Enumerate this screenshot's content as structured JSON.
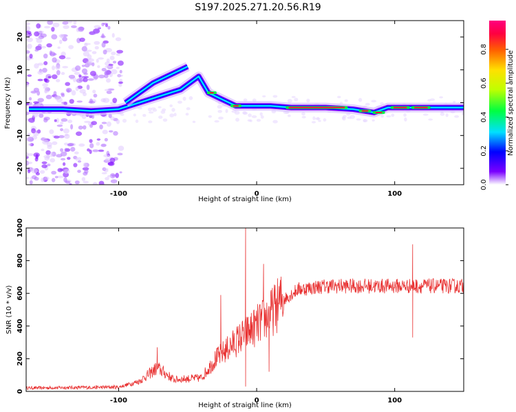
{
  "page_title": "S197.2025.271.20.56.R19",
  "colors": {
    "snr_line": "#e83030",
    "colorbar": [
      "#ffffff",
      "#7a00ff",
      "#0000ff",
      "#00e0ff",
      "#00ff40",
      "#c0ff00",
      "#ffe000",
      "#ff6000",
      "#ff0040",
      "#ff007f"
    ]
  },
  "chart_data": [
    {
      "id": "spectrogram",
      "type": "heatmap",
      "title": "S197.2025.271.20.56.R19",
      "xlabel": "Height of straight line (km)",
      "ylabel": "Frequency (Hz)",
      "xlim": [
        -167,
        150
      ],
      "ylim": [
        -25,
        25
      ],
      "xticks": [
        -100,
        0,
        100
      ],
      "xtick_labels": [
        "-100",
        "0",
        "100"
      ],
      "yticks": [
        -20,
        -10,
        0,
        10,
        20
      ],
      "ytick_labels": [
        "-20",
        "-10",
        "0",
        "10",
        "20"
      ],
      "colorbar": {
        "label": "Normalized spectral amplitude",
        "range": [
          0,
          0.97
        ],
        "ticks": [
          0,
          0.2,
          0.4,
          0.6,
          0.8
        ],
        "tick_labels": [
          "0.0",
          "0.2",
          "0.4",
          "0.6",
          "0.8"
        ]
      },
      "ridges": [
        {
          "name": "lower-ridge",
          "x": [
            -165,
            -140,
            -120,
            -100,
            -85,
            -70,
            -55,
            -42,
            -35,
            -25,
            -15,
            -5,
            10,
            25,
            50,
            70,
            85,
            95,
            110,
            125,
            150
          ],
          "y": [
            -2,
            -2,
            -2.5,
            -2,
            0,
            2,
            4,
            8,
            3,
            1,
            -1,
            -1,
            -1,
            -1.5,
            -1.5,
            -2,
            -3,
            -1.5,
            -1.5,
            -1.5,
            -1.5
          ]
        },
        {
          "name": "upper-ridge",
          "x": [
            -95,
            -85,
            -75,
            -65,
            -55,
            -50
          ],
          "y": [
            0,
            3,
            6,
            8,
            10,
            11
          ]
        }
      ]
    },
    {
      "id": "snr",
      "type": "line",
      "xlabel": "Height of straight line (km)",
      "ylabel": "SNR (10 * v/v)",
      "xlim": [
        -167,
        150
      ],
      "ylim": [
        0,
        1000
      ],
      "xticks": [
        -100,
        0,
        100
      ],
      "xtick_labels": [
        "-100",
        "0",
        "100"
      ],
      "yticks": [
        0,
        200,
        400,
        600,
        800,
        1000
      ],
      "ytick_labels": [
        "0",
        "200",
        "400",
        "600",
        "800",
        "1000"
      ],
      "series": [
        {
          "name": "SNR",
          "envelope_x": [
            -167,
            -100,
            -85,
            -72,
            -60,
            -40,
            -30,
            -20,
            -10,
            0,
            10,
            20,
            30,
            50,
            100,
            150
          ],
          "envelope_y": [
            20,
            25,
            60,
            140,
            70,
            80,
            190,
            260,
            330,
            390,
            460,
            560,
            620,
            640,
            640,
            640
          ],
          "spikes": [
            {
              "x": -72,
              "y": 270
            },
            {
              "x": -26,
              "y": 590
            },
            {
              "x": -8,
              "y": 1000
            },
            {
              "x": -8,
              "y": 30
            },
            {
              "x": 5,
              "y": 780
            },
            {
              "x": 9,
              "y": 120
            },
            {
              "x": 113,
              "y": 900
            },
            {
              "x": 113,
              "y": 330
            }
          ]
        }
      ]
    }
  ]
}
